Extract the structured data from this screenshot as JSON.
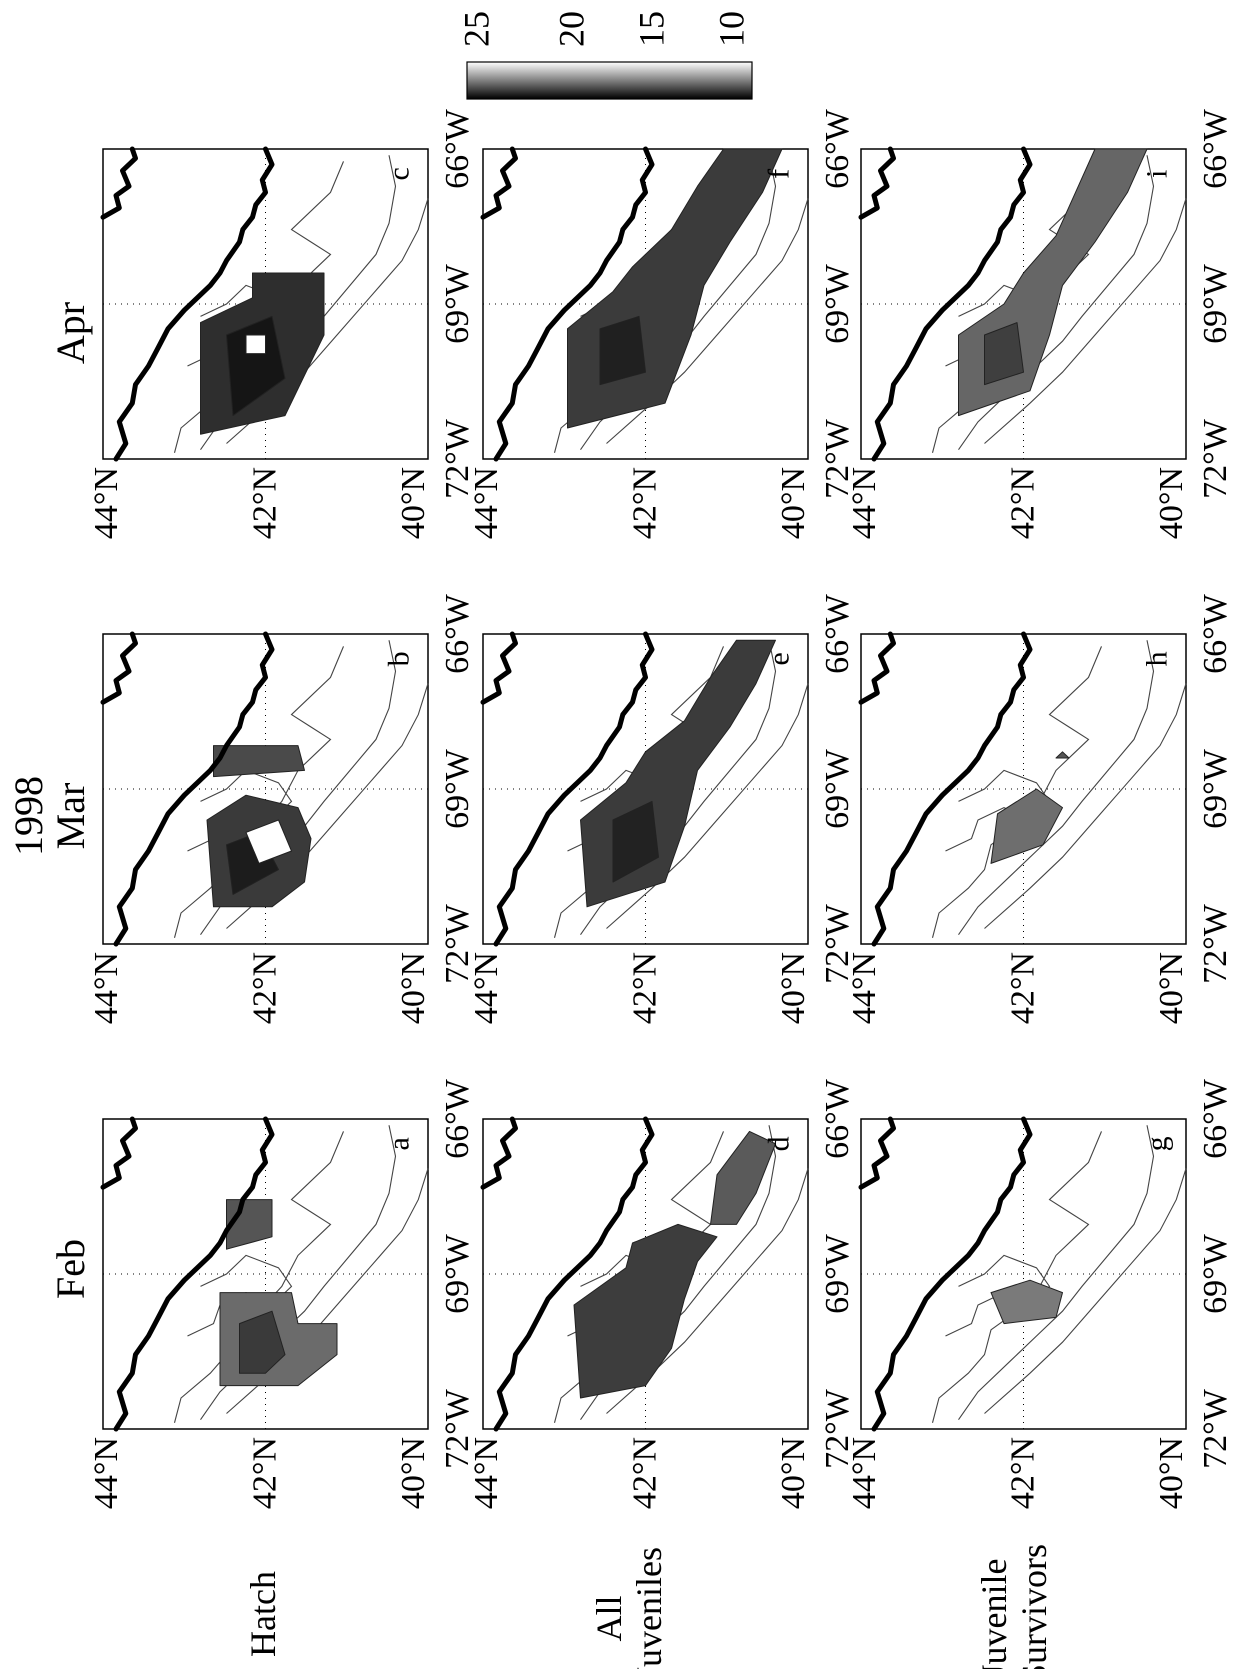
{
  "figure": {
    "year": "1998",
    "months": [
      "Feb",
      "Mar",
      "Apr"
    ],
    "rows": [
      {
        "label_lines": [
          "Hatch"
        ]
      },
      {
        "label_lines": [
          "All",
          "Juveniles"
        ]
      },
      {
        "label_lines": [
          "Juvenile",
          "Survivors"
        ]
      }
    ],
    "panel_letters": [
      [
        "a",
        "b",
        "c"
      ],
      [
        "d",
        "e",
        "f"
      ],
      [
        "g",
        "h",
        "i"
      ]
    ],
    "lat_ticks": [
      "44°N",
      "42°N",
      "40°N"
    ],
    "lon_ticks": [
      "72°W",
      "69°W",
      "66°W"
    ],
    "colorbar": {
      "ticks": [
        "25",
        "20",
        "15",
        "10"
      ],
      "range": [
        10,
        25
      ],
      "colors": {
        "high": "#000000",
        "low": "#ffffff"
      }
    },
    "orientation": "rotated 90° counter-clockwise"
  }
}
